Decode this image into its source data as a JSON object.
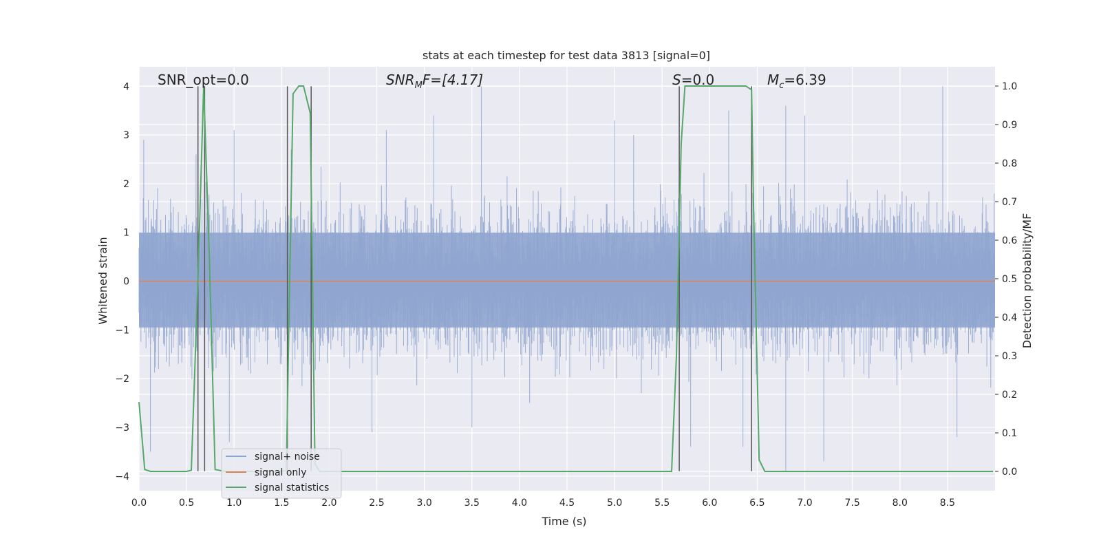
{
  "chart_data": {
    "type": "line",
    "title": "stats at each timestep for test data 3813 [signal=0]",
    "xlabel": "Time (s)",
    "ylabel": "Whitened strain",
    "ylabel_right": "Detection probability/MF",
    "xlim": [
      0.0,
      9.0
    ],
    "ylim": [
      -4.3,
      4.4
    ],
    "ylim_right": [
      -0.05,
      1.05
    ],
    "xticks": [
      "0.0",
      "0.5",
      "1.0",
      "1.5",
      "2.0",
      "2.5",
      "3.0",
      "3.5",
      "4.0",
      "4.5",
      "5.0",
      "5.5",
      "6.0",
      "6.5",
      "7.0",
      "7.5",
      "8.0",
      "8.5"
    ],
    "yticks": [
      "−4",
      "−3",
      "−2",
      "−1",
      "0",
      "1",
      "2",
      "3",
      "4"
    ],
    "yticks_right": [
      "0.0",
      "0.1",
      "0.2",
      "0.3",
      "0.4",
      "0.5",
      "0.6",
      "0.7",
      "0.8",
      "0.9",
      "1.0"
    ],
    "grid": true,
    "legend_position": "lower-left",
    "annotations": {
      "snr_opt": "SNR_opt=0.0",
      "snr_mf_prefix": "SNR",
      "snr_mf_sub": "M",
      "snr_mf_suffix": "F=[4.17]",
      "s_prefix": "S",
      "s_suffix": "=0.0",
      "mc_prefix": "M",
      "mc_sub": "c",
      "mc_suffix": "=6.39"
    },
    "series": [
      {
        "name": "signal+ noise",
        "color": "#8fa5cf",
        "description_range": [
          -3.6,
          4.0
        ],
        "peaks": [
          [
            0.05,
            2.9
          ],
          [
            0.6,
            2.6
          ],
          [
            1.0,
            3.1
          ],
          [
            1.6,
            2.7
          ],
          [
            2.6,
            3.1
          ],
          [
            3.1,
            3.4
          ],
          [
            3.6,
            4.0
          ],
          [
            5.0,
            3.3
          ],
          [
            5.2,
            3.0
          ],
          [
            6.2,
            3.5
          ],
          [
            6.8,
            3.6
          ],
          [
            7.0,
            3.4
          ],
          [
            8.45,
            4.0
          ]
        ],
        "troughs": [
          [
            0.12,
            -3.5
          ],
          [
            0.95,
            -3.3
          ],
          [
            2.45,
            -3.1
          ],
          [
            3.5,
            -3.0
          ],
          [
            5.8,
            -3.4
          ],
          [
            6.35,
            -3.4
          ],
          [
            6.8,
            -3.9
          ],
          [
            7.2,
            -3.7
          ],
          [
            8.6,
            -3.2
          ]
        ]
      },
      {
        "name": "signal only",
        "color": "#dd8452",
        "x": [
          0.0,
          9.0
        ],
        "y": [
          0.0,
          0.0
        ]
      },
      {
        "name": "signal statistics",
        "color": "#55a868",
        "axis": "right",
        "x": [
          0.0,
          0.06,
          0.12,
          0.2,
          0.3,
          0.4,
          0.5,
          0.55,
          0.62,
          0.68,
          0.74,
          0.8,
          0.9,
          1.0,
          1.1,
          1.2,
          1.3,
          1.4,
          1.5,
          1.55,
          1.57,
          1.62,
          1.68,
          1.73,
          1.8,
          1.85,
          1.9,
          2.0,
          2.5,
          3.0,
          3.5,
          4.0,
          4.5,
          5.0,
          5.5,
          5.6,
          5.65,
          5.7,
          5.74,
          5.8,
          6.0,
          6.2,
          6.38,
          6.44,
          6.46,
          6.52,
          6.58,
          6.65,
          7.0,
          7.5,
          8.0,
          8.5,
          8.98
        ],
        "y": [
          0.18,
          0.005,
          0.0,
          0.0,
          0.0,
          0.0,
          0.0,
          0.003,
          0.5,
          1.0,
          0.55,
          0.005,
          0.0,
          0.0,
          0.0,
          0.0,
          0.0,
          0.0,
          0.0,
          0.003,
          0.3,
          0.98,
          1.0,
          1.0,
          0.93,
          0.02,
          0.0,
          0.0,
          0.0,
          0.0,
          0.0,
          0.0,
          0.0,
          0.0,
          0.0,
          0.0,
          0.3,
          0.85,
          1.0,
          1.0,
          1.0,
          1.0,
          1.0,
          0.99,
          0.7,
          0.03,
          0.0,
          0.0,
          0.0,
          0.0,
          0.0,
          0.0,
          0.0
        ]
      }
    ],
    "vertical_lines": {
      "color": "#555555",
      "x": [
        0.62,
        0.69,
        1.56,
        1.81,
        5.68,
        6.44
      ],
      "y_range": [
        -3.9,
        4.0
      ]
    }
  },
  "legend": {
    "items": [
      {
        "label": "signal+ noise",
        "color": "#8fa5cf"
      },
      {
        "label": "signal only",
        "color": "#dd8452"
      },
      {
        "label": "signal statistics",
        "color": "#55a868"
      }
    ]
  }
}
